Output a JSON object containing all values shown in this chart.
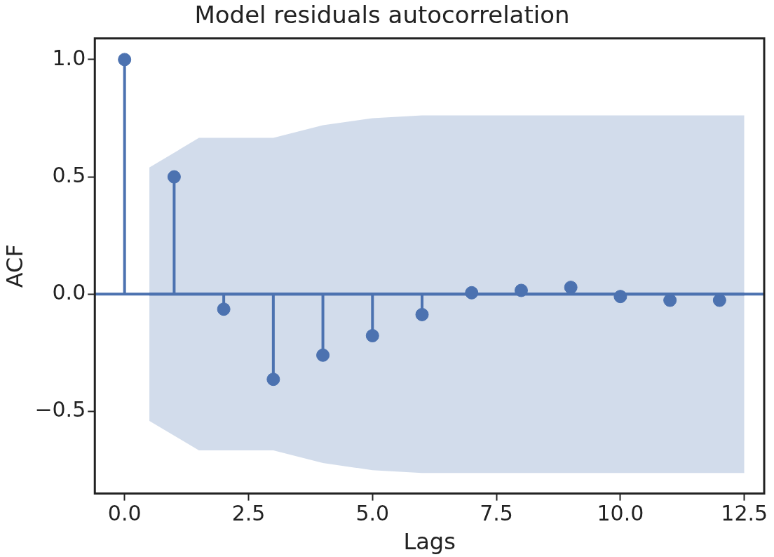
{
  "chart_data": {
    "type": "lollipop",
    "title": "Model residuals autocorrelation",
    "xlabel": "Lags",
    "ylabel": "ACF",
    "xlim": [
      -0.6,
      12.9
    ],
    "ylim": [
      -0.85,
      1.09
    ],
    "xticks": [
      {
        "value": 0,
        "label": "0.0"
      },
      {
        "value": 2.5,
        "label": "2.5"
      },
      {
        "value": 5,
        "label": "5.0"
      },
      {
        "value": 7.5,
        "label": "7.5"
      },
      {
        "value": 10,
        "label": "10.0"
      },
      {
        "value": 12.5,
        "label": "12.5"
      }
    ],
    "yticks": [
      {
        "value": -0.5,
        "label": "−0.5"
      },
      {
        "value": 0,
        "label": "0.0"
      },
      {
        "value": 0.5,
        "label": "0.5"
      },
      {
        "value": 1,
        "label": "1.0"
      }
    ],
    "marker": "circle",
    "grid": false,
    "legend": false,
    "ref_lines": [
      {
        "axis": "y",
        "value": 0,
        "color": "#4c72b0"
      }
    ],
    "series": [
      {
        "type": "line",
        "marker": "none",
        "color": "#4c72b0",
        "x": [
          0.5,
          1.5,
          2.5,
          3,
          4,
          5,
          6,
          12.5
        ],
        "values": [
          0,
          0,
          0,
          0,
          0,
          0,
          0,
          0
        ],
        "upper": [
          0.54,
          0.666,
          0.666,
          0.666,
          0.72,
          0.75,
          0.762,
          0.762
        ],
        "lower": [
          -0.54,
          -0.666,
          -0.666,
          -0.666,
          -0.72,
          -0.75,
          -0.762,
          -0.762
        ]
      },
      {
        "color": "#4c72b0",
        "x": [
          0,
          1,
          2,
          3,
          4,
          5,
          6,
          7,
          8,
          9,
          10,
          11,
          12
        ],
        "values": [
          1.0,
          0.5,
          -0.064,
          -0.363,
          -0.26,
          -0.177,
          -0.087,
          0.006,
          0.016,
          0.029,
          -0.01,
          -0.026,
          -0.026
        ]
      }
    ]
  }
}
